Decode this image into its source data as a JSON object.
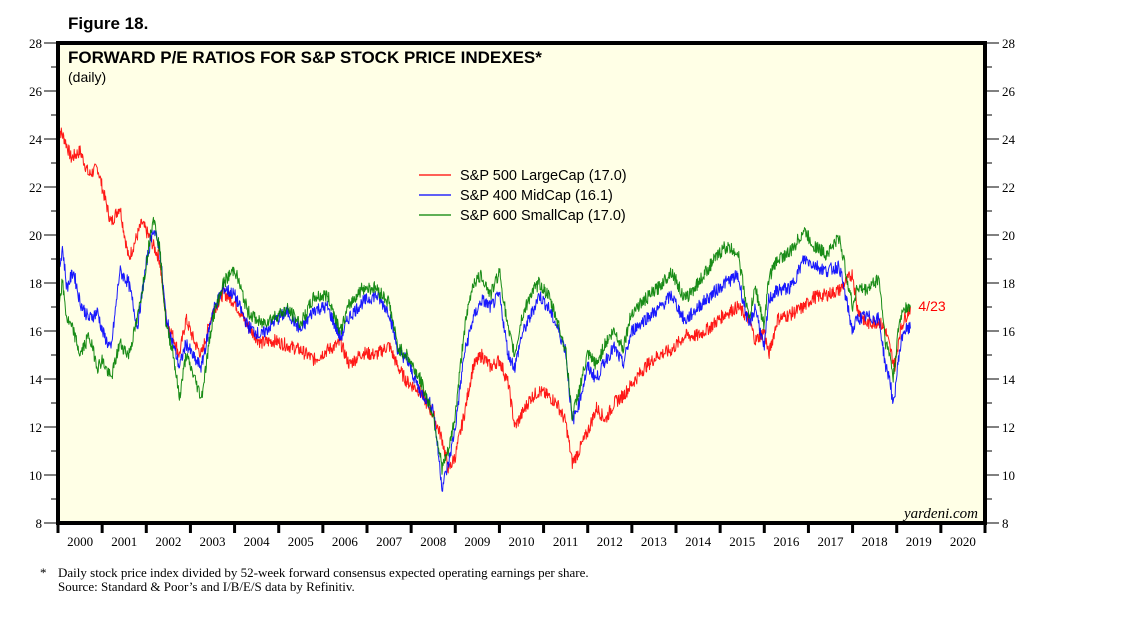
{
  "figure_label": "Figure 18.",
  "footnote": {
    "marker": "*",
    "line1": "Daily stock price index divided by 52-week forward consensus expected operating earnings per share.",
    "line2": "Source: Standard & Poor’s and I/B/E/S data by Refinitiv."
  },
  "chart_data": {
    "type": "line",
    "title": "FORWARD P/E RATIOS FOR S&P STOCK PRICE INDEXES*",
    "subtitle": "(daily)",
    "xlabel": "",
    "ylabel": "",
    "xlim": [
      2000,
      2021
    ],
    "ylim": [
      8,
      28
    ],
    "y_ticks": [
      8,
      10,
      12,
      14,
      16,
      18,
      20,
      22,
      24,
      26,
      28
    ],
    "x_tick_labels": [
      "2000",
      "2001",
      "2002",
      "2003",
      "2004",
      "2005",
      "2006",
      "2007",
      "2008",
      "2009",
      "2010",
      "2011",
      "2012",
      "2013",
      "2014",
      "2015",
      "2016",
      "2017",
      "2018",
      "2019",
      "2020"
    ],
    "axes_on_both_sides": true,
    "grid": false,
    "background": "#ffffe6",
    "legend_position": "top-center",
    "annotation": {
      "text": "4/23",
      "color": "#ff0000",
      "x": 2019.31,
      "y": 17.0
    },
    "watermark": "yardeni.com",
    "series": [
      {
        "name": "S&P 500 LargeCap (17.0)",
        "color": "#ff0000",
        "x": [
          2000.0,
          2000.15,
          2000.3,
          2000.5,
          2000.7,
          2000.9,
          2001.0,
          2001.2,
          2001.4,
          2001.6,
          2001.7,
          2001.9,
          2002.1,
          2002.3,
          2002.45,
          2002.6,
          2002.75,
          2002.9,
          2003.1,
          2003.25,
          2003.5,
          2003.75,
          2004.0,
          2004.3,
          2004.6,
          2004.9,
          2005.2,
          2005.5,
          2005.8,
          2006.1,
          2006.4,
          2006.6,
          2006.9,
          2007.2,
          2007.5,
          2007.7,
          2007.9,
          2008.2,
          2008.5,
          2008.7,
          2008.85,
          2009.0,
          2009.2,
          2009.4,
          2009.6,
          2009.8,
          2010.0,
          2010.2,
          2010.35,
          2010.5,
          2010.7,
          2010.9,
          2011.1,
          2011.3,
          2011.5,
          2011.65,
          2011.8,
          2012.0,
          2012.2,
          2012.4,
          2012.6,
          2012.8,
          2013.0,
          2013.3,
          2013.6,
          2013.9,
          2014.2,
          2014.5,
          2014.8,
          2015.1,
          2015.4,
          2015.65,
          2015.8,
          2016.0,
          2016.1,
          2016.3,
          2016.6,
          2016.9,
          2017.1,
          2017.4,
          2017.7,
          2018.0,
          2018.1,
          2018.3,
          2018.6,
          2018.75,
          2018.9,
          2018.97,
          2019.05,
          2019.15,
          2019.31
        ],
        "values": [
          24.5,
          24.0,
          23.2,
          23.5,
          22.5,
          22.8,
          22.0,
          20.5,
          21.2,
          19.0,
          19.5,
          20.5,
          19.8,
          19.0,
          16.5,
          15.8,
          15.0,
          16.5,
          15.5,
          15.0,
          16.8,
          17.6,
          17.2,
          16.2,
          15.5,
          15.6,
          15.4,
          15.2,
          14.8,
          15.2,
          15.5,
          14.6,
          15.1,
          15.0,
          15.4,
          14.5,
          13.9,
          13.5,
          12.5,
          11.5,
          10.2,
          10.8,
          12.5,
          14.5,
          15.0,
          14.5,
          14.8,
          13.8,
          12.0,
          12.5,
          13.2,
          13.5,
          13.3,
          13.0,
          12.2,
          10.5,
          11.0,
          11.8,
          12.8,
          12.3,
          13.0,
          13.3,
          13.8,
          14.5,
          15.0,
          15.2,
          15.8,
          15.8,
          16.2,
          16.7,
          17.0,
          16.5,
          15.6,
          16.0,
          15.0,
          16.5,
          16.7,
          17.0,
          17.4,
          17.5,
          17.7,
          18.4,
          17.0,
          16.3,
          16.4,
          16.0,
          14.9,
          14.5,
          15.8,
          16.4,
          17.0
        ]
      },
      {
        "name": "S&P 400 MidCap (16.1)",
        "color": "#0000ff",
        "x": [
          2000.0,
          2000.1,
          2000.2,
          2000.35,
          2000.5,
          2000.7,
          2000.9,
          2001.0,
          2001.2,
          2001.4,
          2001.6,
          2001.8,
          2002.0,
          2002.15,
          2002.3,
          2002.45,
          2002.6,
          2002.75,
          2002.9,
          2003.1,
          2003.25,
          2003.5,
          2003.75,
          2004.0,
          2004.3,
          2004.6,
          2004.9,
          2005.2,
          2005.5,
          2005.8,
          2006.1,
          2006.4,
          2006.6,
          2006.9,
          2007.2,
          2007.5,
          2007.7,
          2007.9,
          2008.2,
          2008.5,
          2008.7,
          2008.85,
          2009.0,
          2009.2,
          2009.4,
          2009.6,
          2009.8,
          2010.0,
          2010.2,
          2010.35,
          2010.5,
          2010.7,
          2010.9,
          2011.1,
          2011.3,
          2011.5,
          2011.65,
          2011.8,
          2012.0,
          2012.2,
          2012.4,
          2012.6,
          2012.8,
          2013.0,
          2013.3,
          2013.6,
          2013.9,
          2014.2,
          2014.5,
          2014.8,
          2015.1,
          2015.4,
          2015.65,
          2015.8,
          2016.0,
          2016.1,
          2016.3,
          2016.6,
          2016.9,
          2017.1,
          2017.4,
          2017.7,
          2018.0,
          2018.1,
          2018.3,
          2018.6,
          2018.75,
          2018.85,
          2018.92,
          2019.05,
          2019.15,
          2019.31
        ],
        "values": [
          18.2,
          19.5,
          17.8,
          18.5,
          17.2,
          16.5,
          16.8,
          16.0,
          15.2,
          18.5,
          18.0,
          16.2,
          18.8,
          20.3,
          19.5,
          16.5,
          15.5,
          14.5,
          15.5,
          14.8,
          14.5,
          16.8,
          17.8,
          17.5,
          16.2,
          15.8,
          16.4,
          16.8,
          16.0,
          16.9,
          17.0,
          15.7,
          16.6,
          17.2,
          17.5,
          16.8,
          15.2,
          14.8,
          13.5,
          12.8,
          9.5,
          10.5,
          12.0,
          15.0,
          16.5,
          17.3,
          17.0,
          17.5,
          15.0,
          14.5,
          15.8,
          16.6,
          17.5,
          17.0,
          16.2,
          15.2,
          12.2,
          13.0,
          14.5,
          14.0,
          14.8,
          15.3,
          14.6,
          16.0,
          16.5,
          16.9,
          17.5,
          16.4,
          17.0,
          17.5,
          18.0,
          18.3,
          16.2,
          17.0,
          15.2,
          17.3,
          17.7,
          17.8,
          19.0,
          18.8,
          18.5,
          18.7,
          16.0,
          16.5,
          16.6,
          16.5,
          14.5,
          14.0,
          12.8,
          15.0,
          16.0,
          16.1
        ]
      },
      {
        "name": "S&P 600 SmallCap (17.0)",
        "color": "#008000",
        "x": [
          2000.0,
          2000.1,
          2000.2,
          2000.35,
          2000.5,
          2000.7,
          2000.9,
          2001.0,
          2001.2,
          2001.4,
          2001.6,
          2001.8,
          2002.0,
          2002.15,
          2002.3,
          2002.45,
          2002.6,
          2002.75,
          2002.9,
          2003.1,
          2003.25,
          2003.5,
          2003.75,
          2004.0,
          2004.3,
          2004.6,
          2004.9,
          2005.2,
          2005.5,
          2005.8,
          2006.1,
          2006.4,
          2006.6,
          2006.9,
          2007.2,
          2007.5,
          2007.7,
          2007.9,
          2008.2,
          2008.5,
          2008.7,
          2008.85,
          2009.0,
          2009.2,
          2009.4,
          2009.6,
          2009.8,
          2010.0,
          2010.2,
          2010.35,
          2010.5,
          2010.7,
          2010.9,
          2011.1,
          2011.3,
          2011.5,
          2011.65,
          2011.8,
          2012.0,
          2012.2,
          2012.4,
          2012.6,
          2012.8,
          2013.0,
          2013.3,
          2013.6,
          2013.9,
          2014.2,
          2014.5,
          2014.8,
          2015.1,
          2015.4,
          2015.65,
          2015.8,
          2016.0,
          2016.1,
          2016.3,
          2016.6,
          2016.9,
          2017.1,
          2017.4,
          2017.7,
          2018.0,
          2018.1,
          2018.3,
          2018.6,
          2018.75,
          2018.85,
          2018.92,
          2019.05,
          2019.15,
          2019.31
        ],
        "values": [
          17.0,
          18.0,
          16.5,
          16.0,
          15.0,
          15.8,
          14.5,
          14.8,
          14.0,
          15.5,
          15.0,
          16.5,
          18.8,
          20.8,
          19.5,
          16.2,
          15.2,
          13.2,
          15.0,
          14.0,
          13.2,
          16.5,
          18.0,
          18.6,
          16.8,
          16.3,
          16.6,
          16.9,
          16.3,
          17.4,
          17.5,
          16.0,
          17.1,
          17.8,
          17.8,
          17.2,
          15.3,
          15.0,
          14.0,
          12.5,
          10.3,
          11.0,
          12.5,
          16.0,
          18.0,
          18.3,
          17.5,
          18.5,
          16.0,
          15.0,
          16.5,
          17.5,
          18.0,
          17.5,
          16.5,
          15.2,
          12.4,
          13.5,
          15.0,
          14.6,
          15.5,
          16.0,
          15.3,
          16.8,
          17.3,
          17.8,
          18.5,
          17.3,
          18.0,
          18.8,
          19.5,
          19.3,
          16.5,
          17.8,
          16.2,
          18.2,
          19.0,
          19.3,
          20.2,
          19.6,
          19.2,
          19.9,
          17.0,
          17.8,
          17.7,
          18.2,
          15.5,
          15.0,
          14.0,
          16.2,
          17.0,
          17.0
        ]
      }
    ]
  }
}
